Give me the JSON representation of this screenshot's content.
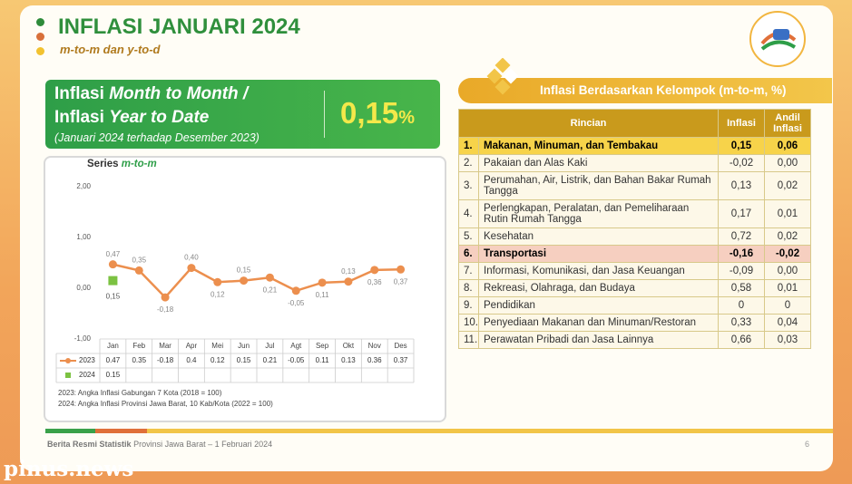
{
  "header": {
    "title": "INFLASI JANUARI 2024",
    "subtitle": "m-to-m dan y-to-d"
  },
  "banner": {
    "lines": [
      [
        "Inflasi",
        "Month to Month /"
      ],
      [
        "Inflasi",
        "Year  to Date"
      ]
    ],
    "value": "0,15",
    "unit": "%",
    "note": "(Januari 2024 terhadap Desember 2023)"
  },
  "chart_data": {
    "type": "line",
    "title": "Series",
    "subtitle": "m-to-m",
    "categories": [
      "Jan",
      "Feb",
      "Mar",
      "Apr",
      "Mei",
      "Jun",
      "Jul",
      "Agt",
      "Sep",
      "Okt",
      "Nov",
      "Des"
    ],
    "series": [
      {
        "name": "2023",
        "color": "#ec8f4e",
        "marker": "circle",
        "values": [
          0.47,
          0.35,
          -0.18,
          0.4,
          0.12,
          0.15,
          0.21,
          -0.05,
          0.11,
          0.13,
          0.36,
          0.37
        ],
        "value_labels": [
          "0,47",
          "0,35",
          "-0,18",
          "0,40",
          "0,12",
          "0,15",
          "0,21",
          "-0,05",
          "0,11",
          "0,13",
          "0,36",
          "0,37"
        ]
      },
      {
        "name": "2024",
        "color": "#7cc242",
        "marker": "square",
        "values": [
          0.15,
          null,
          null,
          null,
          null,
          null,
          null,
          null,
          null,
          null,
          null,
          null
        ],
        "value_labels": [
          "0,15",
          null,
          null,
          null,
          null,
          null,
          null,
          null,
          null,
          null,
          null,
          null
        ]
      }
    ],
    "ylim": [
      -1,
      2
    ],
    "yticks": [
      {
        "value": -1,
        "label": "-1,00"
      },
      {
        "value": 0,
        "label": "0,00"
      },
      {
        "value": 1,
        "label": "1,00"
      },
      {
        "value": 2,
        "label": "2,00"
      }
    ],
    "grid": false,
    "notes": [
      "2023: Angka Inflasi Gabungan 7 Kota (2018 = 100)",
      "2024: Angka Inflasi Provinsi Jawa Barat, 10 Kab/Kota (2022 = 100)"
    ]
  },
  "table": {
    "title": "Inflasi Berdasarkan Kelompok (m-to-m, %)",
    "columns": [
      "Rincian",
      "Inflasi",
      "Andil Inflasi"
    ],
    "rows": [
      [
        "1.",
        "Makanan, Minuman, dan Tembakau",
        "0,15",
        "0,06"
      ],
      [
        "2.",
        "Pakaian dan Alas Kaki",
        "-0,02",
        "0,00"
      ],
      [
        "3.",
        "Perumahan, Air, Listrik, dan Bahan Bakar Rumah Tangga",
        "0,13",
        "0,02"
      ],
      [
        "4.",
        "Perlengkapan, Peralatan, dan Pemeliharaan Rutin Rumah Tangga",
        "0,17",
        "0,01"
      ],
      [
        "5.",
        "Kesehatan",
        "0,72",
        "0,02"
      ],
      [
        "6.",
        "Transportasi",
        "-0,16",
        "-0,02"
      ],
      [
        "7.",
        "Informasi, Komunikasi, dan Jasa Keuangan",
        "-0,09",
        "0,00"
      ],
      [
        "8.",
        "Rekreasi, Olahraga, dan Budaya",
        "0,58",
        "0,01"
      ],
      [
        "9.",
        "Pendidikan",
        "0",
        "0"
      ],
      [
        "10.",
        "Penyediaan Makanan dan Minuman/Restoran",
        "0,33",
        "0,04"
      ],
      [
        "11.",
        "Perawatan Pribadi dan Jasa Lainnya",
        "0,66",
        "0,03"
      ]
    ]
  },
  "footer": {
    "source": "Berita Resmi Statistik",
    "text": "Provinsi Jawa Barat – 1 Februari 2024",
    "page": "6"
  },
  "watermark": "pinus.news"
}
